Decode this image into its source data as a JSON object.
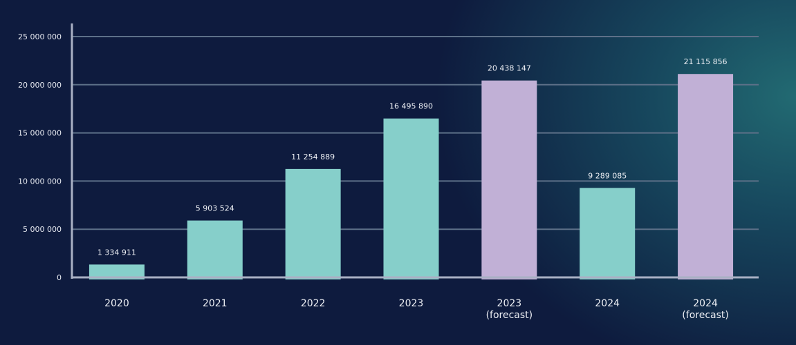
{
  "chart_data": {
    "type": "bar",
    "categories": [
      [
        "2020"
      ],
      [
        "2021"
      ],
      [
        "2022"
      ],
      [
        "2023"
      ],
      [
        "2023",
        "(forecast)"
      ],
      [
        "2024"
      ],
      [
        "2024",
        "(forecast)"
      ]
    ],
    "values": [
      1334911,
      5903524,
      11254889,
      16495890,
      20438147,
      9289085,
      21115856
    ],
    "data_labels": [
      "1 334 911",
      "5 903 524",
      "11 254 889",
      "16 495 890",
      "20 438 147",
      "9 289 085",
      "21 115 856"
    ],
    "forecast": [
      false,
      false,
      false,
      false,
      true,
      false,
      true
    ],
    "yticks": [
      0,
      5000000,
      10000000,
      15000000,
      20000000,
      25000000
    ],
    "ytick_labels": [
      "0",
      "5 000 000",
      "10 000 000",
      "15 000 000",
      "20 000 000",
      "25 000 000"
    ],
    "ylim": [
      0,
      25000000
    ],
    "grid": true,
    "colors": {
      "actual": "#86cfca",
      "forecast": "#c1b0d6",
      "grid": "#5d7088",
      "axis": "#a9b0c4"
    },
    "title": "",
    "xlabel": "",
    "ylabel": ""
  }
}
